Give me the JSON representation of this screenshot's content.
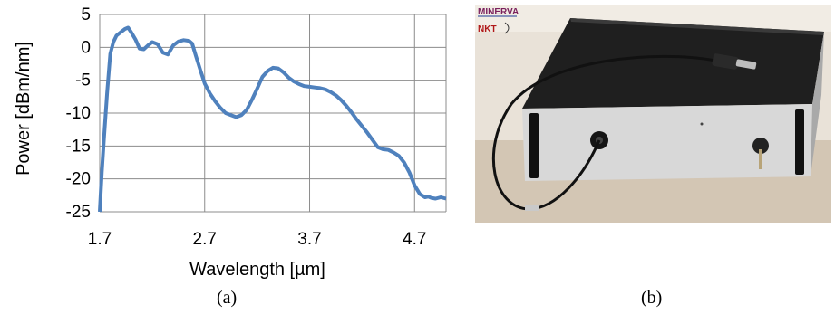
{
  "figure": {
    "caption_a": "(a)",
    "caption_b": "(b)"
  },
  "chart_data": {
    "type": "line",
    "xlabel": "Wavelength [µm]",
    "ylabel": "Power [dBm/nm]",
    "xlim": [
      1.7,
      5.0
    ],
    "ylim": [
      -25,
      5
    ],
    "xticks": [
      "1.7",
      "2.7",
      "3.7",
      "4.7"
    ],
    "yticks": [
      "5",
      "0",
      "-5",
      "-10",
      "-15",
      "-20",
      "-25"
    ],
    "grid": true,
    "series": [
      {
        "color": "#4F81BD",
        "x": [
          1.7,
          1.72,
          1.74,
          1.77,
          1.8,
          1.83,
          1.86,
          1.9,
          1.94,
          1.97,
          2.0,
          2.04,
          2.08,
          2.12,
          2.16,
          2.2,
          2.25,
          2.3,
          2.35,
          2.4,
          2.45,
          2.5,
          2.55,
          2.58,
          2.62,
          2.66,
          2.7,
          2.75,
          2.8,
          2.85,
          2.9,
          2.95,
          3.0,
          3.05,
          3.1,
          3.15,
          3.2,
          3.25,
          3.3,
          3.35,
          3.4,
          3.45,
          3.5,
          3.55,
          3.6,
          3.65,
          3.7,
          3.75,
          3.8,
          3.85,
          3.9,
          3.95,
          4.0,
          4.05,
          4.1,
          4.15,
          4.2,
          4.25,
          4.3,
          4.35,
          4.4,
          4.45,
          4.5,
          4.55,
          4.6,
          4.65,
          4.7,
          4.75,
          4.8,
          4.83,
          4.86,
          4.9,
          4.95,
          5.0
        ],
        "y": [
          -25,
          -19,
          -14,
          -7,
          -1,
          0.8,
          1.8,
          2.3,
          2.8,
          3.0,
          2.3,
          1.2,
          -0.2,
          -0.3,
          0.3,
          0.8,
          0.5,
          -0.8,
          -1.1,
          0.3,
          0.9,
          1.1,
          1.0,
          0.6,
          -1.5,
          -3.5,
          -5.5,
          -7.0,
          -8.2,
          -9.2,
          -10.0,
          -10.3,
          -10.6,
          -10.3,
          -9.5,
          -8.0,
          -6.3,
          -4.5,
          -3.6,
          -3.1,
          -3.2,
          -3.8,
          -4.6,
          -5.2,
          -5.6,
          -5.9,
          -6.0,
          -6.1,
          -6.2,
          -6.4,
          -6.8,
          -7.3,
          -8.0,
          -8.9,
          -9.9,
          -11.0,
          -12.0,
          -13.0,
          -14.1,
          -15.2,
          -15.5,
          -15.6,
          -16.0,
          -16.5,
          -17.5,
          -19.0,
          -21.0,
          -22.3,
          -22.8,
          -22.7,
          -22.9,
          -23.0,
          -22.8,
          -23.0
        ]
      }
    ]
  }
}
